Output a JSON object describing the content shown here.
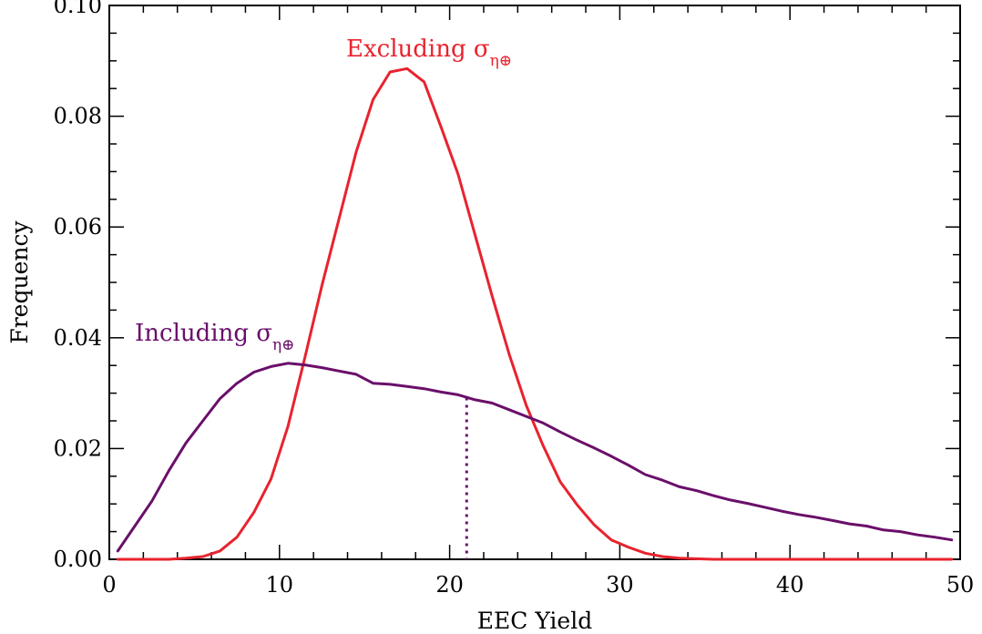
{
  "chart_data": {
    "type": "line",
    "xlabel": "EEC Yield",
    "ylabel": "Frequency",
    "xlim": [
      0,
      50
    ],
    "ylim": [
      0,
      0.1
    ],
    "x_ticks": [
      0,
      10,
      20,
      30,
      40,
      50
    ],
    "x_tick_labels": [
      "0",
      "10",
      "20",
      "30",
      "40",
      "50"
    ],
    "y_ticks": [
      0.0,
      0.02,
      0.04,
      0.06,
      0.08,
      0.1
    ],
    "y_tick_labels": [
      "0.00",
      "0.02",
      "0.04",
      "0.06",
      "0.08",
      "0.10"
    ],
    "grid": false,
    "series": [
      {
        "label_prefix": "Excluding σ",
        "label_subscript": "η⊕",
        "color": "#e8232e",
        "x": [
          0.5,
          1.5,
          2.5,
          3.5,
          4.5,
          5.5,
          6.5,
          7.5,
          8.5,
          9.5,
          10.5,
          11.5,
          12.5,
          13.5,
          14.5,
          15.5,
          16.5,
          17.5,
          18.5,
          19.5,
          20.5,
          21.5,
          22.5,
          23.5,
          24.5,
          25.5,
          26.5,
          27.5,
          28.5,
          29.5,
          30.5,
          31.5,
          32.5,
          33.5,
          34.5,
          35.5,
          36.5,
          37.5,
          38.5,
          39.5,
          40.5,
          41.5,
          42.5,
          43.5,
          44.5,
          45.5,
          46.5,
          47.5,
          48.5,
          49.5
        ],
        "y": [
          0.0,
          0.0,
          0.0,
          0.0,
          0.0002,
          0.0005,
          0.0015,
          0.004,
          0.0085,
          0.0145,
          0.024,
          0.0365,
          0.0495,
          0.0615,
          0.0735,
          0.083,
          0.088,
          0.0886,
          0.0862,
          0.078,
          0.0695,
          0.0585,
          0.0475,
          0.037,
          0.0278,
          0.0205,
          0.014,
          0.0098,
          0.0062,
          0.0035,
          0.0022,
          0.0011,
          0.0005,
          0.0002,
          0.0001,
          0.0,
          0.0,
          0.0,
          0.0,
          0.0,
          0.0,
          0.0,
          0.0,
          0.0,
          0.0,
          0.0,
          0.0,
          0.0,
          0.0,
          0.0
        ]
      },
      {
        "label_prefix": "Including σ",
        "label_subscript": "η⊕",
        "color": "#6a0f6a",
        "x": [
          0.5,
          1.5,
          2.5,
          3.5,
          4.5,
          5.5,
          6.5,
          7.5,
          8.5,
          9.5,
          10.5,
          11.5,
          12.5,
          13.5,
          14.5,
          15.5,
          16.5,
          17.5,
          18.5,
          19.5,
          20.5,
          21.5,
          22.5,
          23.5,
          24.5,
          25.5,
          26.5,
          27.5,
          28.5,
          29.5,
          30.5,
          31.5,
          32.5,
          33.5,
          34.5,
          35.5,
          36.5,
          37.5,
          38.5,
          39.5,
          40.5,
          41.5,
          42.5,
          43.5,
          44.5,
          45.5,
          46.5,
          47.5,
          48.5,
          49.5
        ],
        "y": [
          0.0015,
          0.006,
          0.0105,
          0.016,
          0.021,
          0.025,
          0.029,
          0.0318,
          0.0338,
          0.0348,
          0.0354,
          0.0351,
          0.0346,
          0.034,
          0.0334,
          0.0318,
          0.0316,
          0.0312,
          0.0308,
          0.0302,
          0.0297,
          0.0288,
          0.0282,
          0.027,
          0.0258,
          0.0246,
          0.023,
          0.0215,
          0.0201,
          0.0186,
          0.017,
          0.0153,
          0.0143,
          0.0131,
          0.0124,
          0.0115,
          0.0107,
          0.0101,
          0.0094,
          0.0087,
          0.0081,
          0.0076,
          0.007,
          0.0064,
          0.006,
          0.0053,
          0.005,
          0.0044,
          0.004,
          0.0035
        ]
      }
    ],
    "marker_line": {
      "x": 21.0,
      "y_top": 0.0292,
      "style": "dotted",
      "color": "#6a0f6a"
    }
  }
}
